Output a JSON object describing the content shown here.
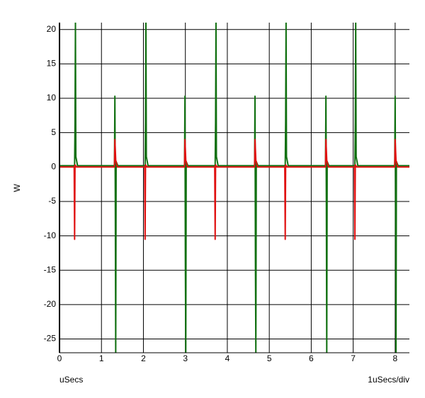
{
  "chart_data": {
    "type": "line",
    "y_label": "W",
    "x_label": "uSecs",
    "x_scale_label": "1uSecs/div",
    "xlim": [
      0,
      8.34
    ],
    "ylim": [
      -27,
      21
    ],
    "xticks": [
      0,
      1,
      2,
      3,
      4,
      5,
      6,
      7,
      8
    ],
    "yticks": [
      -25,
      -20,
      -15,
      -10,
      -5,
      0,
      5,
      10,
      15,
      20
    ],
    "grid": true,
    "series": [
      {
        "color": "#107010",
        "x": [
          0,
          0.36,
          0.37,
          0.38,
          0.39,
          0.43,
          1.31,
          1.32,
          1.33,
          1.34,
          1.35,
          1.39,
          2.04,
          2.05,
          2.06,
          2.07,
          2.11,
          2.98,
          2.99,
          3.0,
          3.01,
          3.02,
          3.06,
          3.71,
          3.72,
          3.73,
          3.74,
          3.78,
          4.65,
          4.66,
          4.67,
          4.68,
          4.69,
          4.73,
          5.38,
          5.39,
          5.4,
          5.41,
          5.45,
          6.34,
          6.35,
          6.36,
          6.37,
          6.38,
          6.42,
          7.04,
          7.05,
          7.06,
          7.07,
          7.11,
          7.99,
          8.0,
          8.01,
          8.02,
          8.03,
          8.07,
          8.34
        ],
        "values": [
          0.2,
          0.2,
          6.5,
          21,
          1.5,
          0.2,
          0.2,
          10.3,
          -4.5,
          -27,
          0.8,
          0.2,
          0.2,
          6.5,
          21,
          1.5,
          0.2,
          0.2,
          10.3,
          -14,
          -27,
          0.8,
          0.2,
          0.2,
          6.5,
          21,
          1.5,
          0.2,
          0.2,
          10.3,
          -14,
          -27,
          0.8,
          0.2,
          0.2,
          6.5,
          21,
          1.5,
          0.2,
          0.2,
          10.3,
          -4.5,
          -27,
          0.8,
          0.2,
          0.2,
          6.5,
          21,
          1.5,
          0.2,
          0.2,
          10.3,
          -4.5,
          -27,
          0.8,
          0.2,
          0.2
        ]
      },
      {
        "color": "#e01010",
        "x": [
          0,
          0.35,
          0.36,
          0.37,
          0.41,
          1.31,
          1.32,
          1.34,
          1.38,
          2.03,
          2.04,
          2.05,
          2.09,
          2.98,
          2.99,
          3.01,
          3.05,
          3.7,
          3.71,
          3.72,
          3.76,
          4.65,
          4.66,
          4.68,
          4.72,
          5.37,
          5.38,
          5.39,
          5.43,
          6.34,
          6.35,
          6.37,
          6.41,
          7.03,
          7.04,
          7.05,
          7.09,
          7.99,
          8.0,
          8.02,
          8.06,
          8.34
        ],
        "values": [
          0,
          0,
          -10.5,
          0.3,
          0,
          0,
          4,
          1,
          0,
          0,
          -10.5,
          0.3,
          0,
          0,
          4,
          1,
          0,
          0,
          -10.5,
          0.3,
          0,
          0,
          4,
          1,
          0,
          0,
          -10.5,
          0.3,
          0,
          0,
          4,
          1,
          0,
          0,
          -10.5,
          0.3,
          0,
          0,
          4,
          1,
          0,
          0
        ]
      }
    ]
  }
}
